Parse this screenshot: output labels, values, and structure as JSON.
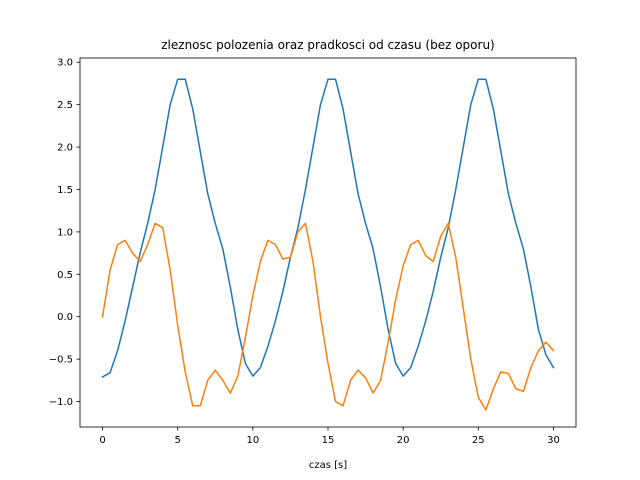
{
  "chart_data": {
    "type": "line",
    "title": "zleznosc polozenia oraz pradkosci od czasu (bez oporu)",
    "xlabel": "czas [s]",
    "ylabel": "",
    "xlim": [
      -1.5,
      31.5
    ],
    "ylim": [
      -1.3,
      3.05
    ],
    "grid": false,
    "legend": "none",
    "x_ticks": [
      0,
      5,
      10,
      15,
      20,
      25,
      30
    ],
    "y_ticks": [
      -1.0,
      -0.5,
      0.0,
      0.5,
      1.0,
      1.5,
      2.0,
      2.5,
      3.0
    ],
    "x_tick_labels": [
      "0",
      "5",
      "10",
      "15",
      "20",
      "25",
      "30"
    ],
    "y_tick_labels": [
      "−1.0",
      "−0.5",
      "0.0",
      "0.5",
      "1.0",
      "1.5",
      "2.0",
      "2.5",
      "3.0"
    ],
    "series": [
      {
        "color": "#1f77b4",
        "x": [
          0,
          0.5,
          1,
          1.5,
          2,
          2.5,
          3,
          3.5,
          4,
          4.5,
          5,
          5.5,
          6,
          6.5,
          7,
          7.5,
          8,
          8.5,
          9,
          9.5,
          10,
          10.5,
          11,
          11.5,
          12,
          12.5,
          13,
          13.5,
          14,
          14.5,
          15,
          15.5,
          16,
          16.5,
          17,
          17.5,
          18,
          18.5,
          19,
          19.5,
          20,
          20.5,
          21,
          21.5,
          22,
          22.5,
          23,
          23.5,
          24,
          24.5,
          25,
          25.5,
          26,
          26.5,
          27,
          27.5,
          28,
          28.5,
          29,
          29.5,
          30
        ],
        "values": [
          -0.71,
          -0.66,
          -0.4,
          -0.05,
          0.35,
          0.75,
          1.1,
          1.5,
          2.0,
          2.5,
          2.8,
          2.8,
          2.45,
          1.95,
          1.45,
          1.1,
          0.8,
          0.35,
          -0.15,
          -0.55,
          -0.7,
          -0.6,
          -0.35,
          -0.05,
          0.3,
          0.7,
          1.05,
          1.5,
          2.0,
          2.5,
          2.8,
          2.8,
          2.45,
          1.95,
          1.45,
          1.1,
          0.8,
          0.35,
          -0.15,
          -0.55,
          -0.7,
          -0.6,
          -0.35,
          -0.05,
          0.3,
          0.7,
          1.05,
          1.5,
          2.0,
          2.5,
          2.8,
          2.8,
          2.45,
          1.95,
          1.45,
          1.1,
          0.8,
          0.35,
          -0.15,
          -0.45,
          -0.6
        ]
      },
      {
        "color": "#ff7f0e",
        "x": [
          0,
          0.5,
          1,
          1.5,
          2,
          2.5,
          3,
          3.5,
          4,
          4.5,
          5,
          5.5,
          6,
          6.5,
          7,
          7.5,
          8,
          8.5,
          9,
          9.5,
          10,
          10.5,
          11,
          11.5,
          12,
          12.5,
          13,
          13.5,
          14,
          14.5,
          15,
          15.5,
          16,
          16.5,
          17,
          17.5,
          18,
          18.5,
          19,
          19.5,
          20,
          20.5,
          21,
          21.5,
          22,
          22.5,
          23,
          23.5,
          24,
          24.5,
          25,
          25.5,
          26,
          26.5,
          27,
          27.5,
          28,
          28.5,
          29,
          29.5,
          30
        ],
        "values": [
          0.0,
          0.55,
          0.85,
          0.9,
          0.75,
          0.65,
          0.85,
          1.1,
          1.05,
          0.55,
          -0.1,
          -0.65,
          -1.05,
          -1.05,
          -0.75,
          -0.63,
          -0.75,
          -0.9,
          -0.7,
          -0.25,
          0.25,
          0.65,
          0.9,
          0.85,
          0.68,
          0.7,
          1.0,
          1.1,
          0.65,
          0.0,
          -0.55,
          -1.0,
          -1.05,
          -0.75,
          -0.63,
          -0.72,
          -0.9,
          -0.75,
          -0.3,
          0.2,
          0.6,
          0.85,
          0.9,
          0.72,
          0.65,
          0.95,
          1.1,
          0.7,
          0.1,
          -0.5,
          -0.95,
          -1.1,
          -0.85,
          -0.65,
          -0.67,
          -0.85,
          -0.88,
          -0.6,
          -0.4,
          -0.3,
          -0.4
        ]
      }
    ]
  }
}
